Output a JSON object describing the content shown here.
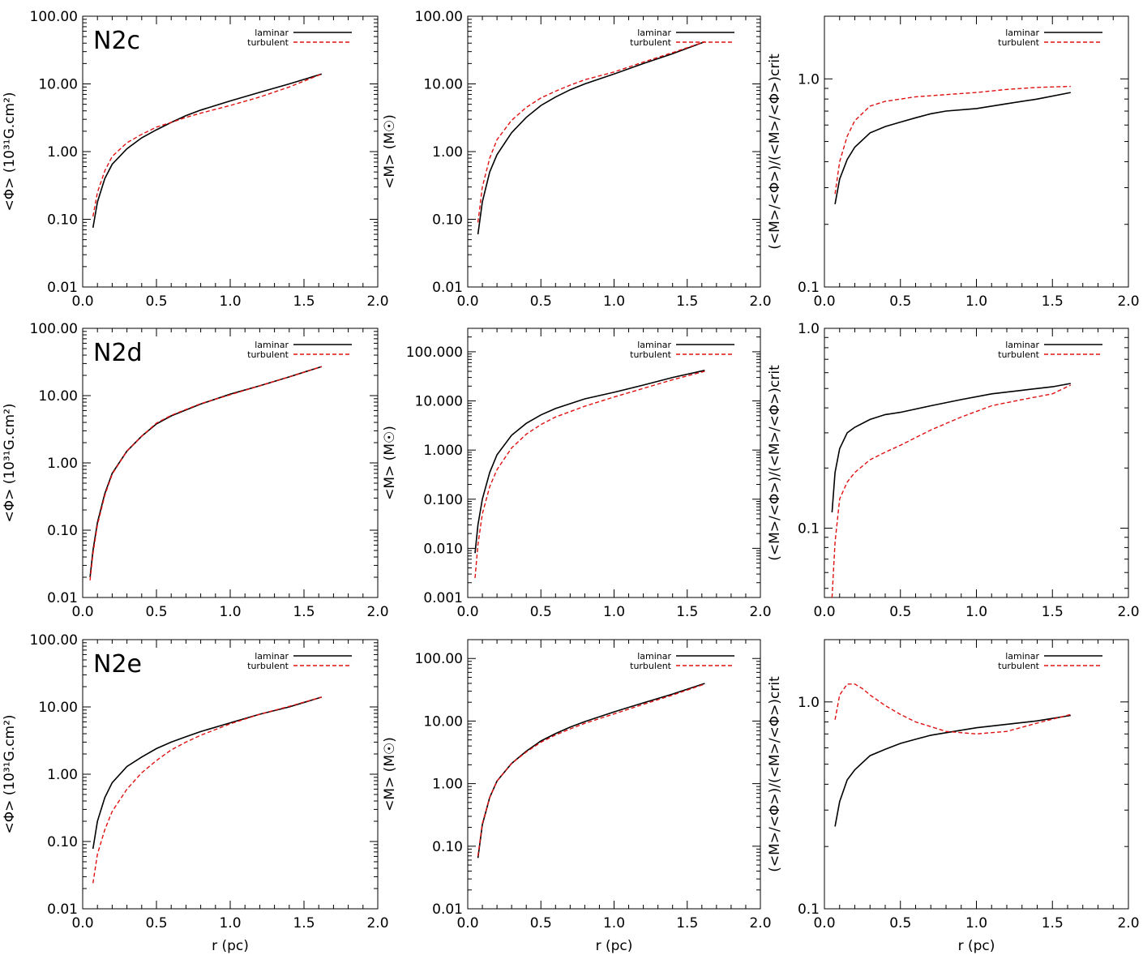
{
  "colors": {
    "laminar": "#000000",
    "turbulent": "#e01010",
    "axis": "#000000"
  },
  "legend": {
    "laminar_label": "laminar",
    "turbulent_label": "turbulent"
  },
  "chart_data": [
    {
      "id": "N2c-flux",
      "type": "line",
      "scale": "log",
      "title": "",
      "panel_label": "N2c",
      "xlabel": "",
      "ylabel": "<Φ> (10³¹G.cm²)",
      "xlim": [
        0,
        2
      ],
      "ylim": [
        0.01,
        100
      ],
      "yticks": [
        0.01,
        0.1,
        1,
        10,
        100
      ],
      "ytick_labels": [
        "0.01",
        "0.10",
        "1.00",
        "10.00",
        "100.00"
      ],
      "xtick_labels": [
        "0.0",
        "0.5",
        "1.0",
        "1.5",
        "2.0"
      ],
      "series": [
        {
          "name": "laminar",
          "x": [
            0.07,
            0.1,
            0.15,
            0.2,
            0.3,
            0.4,
            0.5,
            0.6,
            0.7,
            0.8,
            1.0,
            1.2,
            1.4,
            1.62
          ],
          "values": [
            0.075,
            0.18,
            0.4,
            0.65,
            1.1,
            1.6,
            2.1,
            2.7,
            3.4,
            4.1,
            5.6,
            7.5,
            10,
            14
          ]
        },
        {
          "name": "turbulent",
          "x": [
            0.07,
            0.1,
            0.15,
            0.2,
            0.3,
            0.4,
            0.5,
            0.6,
            0.7,
            0.8,
            1.0,
            1.2,
            1.4,
            1.62
          ],
          "values": [
            0.11,
            0.25,
            0.52,
            0.85,
            1.35,
            1.8,
            2.3,
            2.7,
            3.2,
            3.7,
            4.8,
            6.4,
            9.0,
            14
          ]
        }
      ]
    },
    {
      "id": "N2c-mass",
      "type": "line",
      "scale": "log",
      "title": "",
      "xlabel": "",
      "ylabel": "<M> (M☉)",
      "xlim": [
        0,
        2
      ],
      "ylim": [
        0.01,
        100
      ],
      "yticks": [
        0.01,
        0.1,
        1,
        10,
        100
      ],
      "ytick_labels": [
        "0.01",
        "0.10",
        "1.00",
        "10.00",
        "100.00"
      ],
      "xtick_labels": [
        "0.0",
        "0.5",
        "1.0",
        "1.5",
        "2.0"
      ],
      "series": [
        {
          "name": "laminar",
          "x": [
            0.07,
            0.1,
            0.15,
            0.2,
            0.3,
            0.4,
            0.5,
            0.6,
            0.7,
            0.8,
            1.0,
            1.2,
            1.4,
            1.62
          ],
          "values": [
            0.06,
            0.18,
            0.5,
            0.9,
            1.9,
            3.2,
            4.8,
            6.4,
            8.2,
            10,
            14,
            20,
            28,
            42
          ]
        },
        {
          "name": "turbulent",
          "x": [
            0.07,
            0.1,
            0.15,
            0.2,
            0.3,
            0.4,
            0.5,
            0.6,
            0.7,
            0.8,
            1.0,
            1.2,
            1.4,
            1.62
          ],
          "values": [
            0.09,
            0.3,
            0.8,
            1.5,
            2.9,
            4.5,
            6.2,
            7.8,
            9.6,
            11.5,
            15,
            21,
            29,
            42
          ]
        }
      ]
    },
    {
      "id": "N2c-ratio",
      "type": "line",
      "scale": "log",
      "title": "",
      "xlabel": "",
      "ylabel": "(<M>/<Φ>)/(<M>/<Φ>)crit",
      "xlim": [
        0,
        2
      ],
      "ylim": [
        0.1,
        2
      ],
      "yticks": [
        0.1,
        1.0
      ],
      "ytick_labels": [
        "0.1",
        "1.0"
      ],
      "xtick_labels": [
        "0.0",
        "0.5",
        "1.0",
        "1.5",
        "2.0"
      ],
      "series": [
        {
          "name": "laminar",
          "x": [
            0.07,
            0.1,
            0.15,
            0.2,
            0.3,
            0.4,
            0.5,
            0.6,
            0.7,
            0.8,
            1.0,
            1.2,
            1.4,
            1.62
          ],
          "values": [
            0.25,
            0.33,
            0.41,
            0.47,
            0.55,
            0.59,
            0.62,
            0.65,
            0.68,
            0.7,
            0.72,
            0.76,
            0.8,
            0.86
          ]
        },
        {
          "name": "turbulent",
          "x": [
            0.07,
            0.1,
            0.15,
            0.2,
            0.3,
            0.4,
            0.5,
            0.6,
            0.7,
            0.8,
            1.0,
            1.2,
            1.4,
            1.62
          ],
          "values": [
            0.28,
            0.4,
            0.53,
            0.63,
            0.74,
            0.78,
            0.8,
            0.82,
            0.83,
            0.84,
            0.86,
            0.89,
            0.91,
            0.92
          ]
        }
      ]
    },
    {
      "id": "N2d-flux",
      "type": "line",
      "scale": "log",
      "title": "",
      "panel_label": "N2d",
      "xlabel": "",
      "ylabel": "<Φ> (10³¹G.cm²)",
      "xlim": [
        0,
        2
      ],
      "ylim": [
        0.01,
        100
      ],
      "yticks": [
        0.01,
        0.1,
        1,
        10,
        100
      ],
      "ytick_labels": [
        "0.01",
        "0.10",
        "1.00",
        "10.00",
        "100.00"
      ],
      "xtick_labels": [
        "0.0",
        "0.5",
        "1.0",
        "1.5",
        "2.0"
      ],
      "series": [
        {
          "name": "laminar",
          "x": [
            0.05,
            0.07,
            0.1,
            0.15,
            0.2,
            0.3,
            0.4,
            0.5,
            0.6,
            0.8,
            1.0,
            1.2,
            1.4,
            1.62
          ],
          "values": [
            0.02,
            0.05,
            0.13,
            0.35,
            0.7,
            1.5,
            2.5,
            3.8,
            5.0,
            7.5,
            10.5,
            14,
            19,
            27
          ]
        },
        {
          "name": "turbulent",
          "x": [
            0.05,
            0.07,
            0.1,
            0.15,
            0.2,
            0.3,
            0.4,
            0.5,
            0.6,
            0.8,
            1.0,
            1.2,
            1.4,
            1.62
          ],
          "values": [
            0.018,
            0.045,
            0.12,
            0.33,
            0.68,
            1.5,
            2.5,
            3.9,
            5.1,
            7.6,
            10.3,
            14,
            19,
            27
          ]
        }
      ]
    },
    {
      "id": "N2d-mass",
      "type": "line",
      "scale": "log",
      "title": "",
      "xlabel": "",
      "ylabel": "<M> (M☉)",
      "xlim": [
        0,
        2
      ],
      "ylim": [
        0.001,
        300
      ],
      "yticks": [
        0.001,
        0.01,
        0.1,
        1,
        10,
        100
      ],
      "ytick_labels": [
        "0.001",
        "0.010",
        "0.100",
        "1.000",
        "10.000",
        "100.000"
      ],
      "xtick_labels": [
        "0.0",
        "0.5",
        "1.0",
        "1.5",
        "2.0"
      ],
      "series": [
        {
          "name": "laminar",
          "x": [
            0.05,
            0.07,
            0.1,
            0.15,
            0.2,
            0.3,
            0.4,
            0.5,
            0.6,
            0.8,
            1.0,
            1.2,
            1.4,
            1.62
          ],
          "values": [
            0.008,
            0.03,
            0.1,
            0.35,
            0.8,
            2.0,
            3.5,
            5.2,
            7.0,
            11,
            15,
            21,
            30,
            42
          ]
        },
        {
          "name": "turbulent",
          "x": [
            0.05,
            0.07,
            0.1,
            0.15,
            0.2,
            0.3,
            0.4,
            0.5,
            0.6,
            0.8,
            1.0,
            1.2,
            1.4,
            1.62
          ],
          "values": [
            0.0025,
            0.012,
            0.05,
            0.18,
            0.4,
            1.1,
            2.1,
            3.3,
            4.7,
            7.8,
            12,
            18,
            27,
            40
          ]
        }
      ]
    },
    {
      "id": "N2d-ratio",
      "type": "line",
      "scale": "log",
      "title": "",
      "xlabel": "",
      "ylabel": "(<M>/<Φ>)/(<M>/<Φ>)crit",
      "xlim": [
        0,
        2
      ],
      "ylim": [
        0.045,
        1.0
      ],
      "yticks": [
        0.1,
        1.0
      ],
      "ytick_labels": [
        "0.1",
        "1.0"
      ],
      "xtick_labels": [
        "0.0",
        "0.5",
        "1.0",
        "1.5",
        "2.0"
      ],
      "series": [
        {
          "name": "laminar",
          "x": [
            0.05,
            0.07,
            0.1,
            0.15,
            0.2,
            0.3,
            0.4,
            0.5,
            0.7,
            0.9,
            1.1,
            1.3,
            1.5,
            1.62
          ],
          "values": [
            0.12,
            0.19,
            0.25,
            0.3,
            0.32,
            0.35,
            0.37,
            0.38,
            0.41,
            0.44,
            0.47,
            0.49,
            0.51,
            0.53
          ]
        },
        {
          "name": "turbulent",
          "x": [
            0.05,
            0.07,
            0.1,
            0.15,
            0.2,
            0.3,
            0.4,
            0.5,
            0.7,
            0.9,
            1.1,
            1.3,
            1.5,
            1.62
          ],
          "values": [
            0.045,
            0.085,
            0.14,
            0.17,
            0.19,
            0.22,
            0.24,
            0.26,
            0.31,
            0.36,
            0.41,
            0.44,
            0.47,
            0.52
          ]
        }
      ]
    },
    {
      "id": "N2e-flux",
      "type": "line",
      "scale": "log",
      "title": "",
      "panel_label": "N2e",
      "xlabel": "r (pc)",
      "ylabel": "<Φ> (10³¹G.cm²)",
      "xlim": [
        0,
        2
      ],
      "ylim": [
        0.01,
        100
      ],
      "yticks": [
        0.01,
        0.1,
        1,
        10,
        100
      ],
      "ytick_labels": [
        "0.01",
        "0.10",
        "1.00",
        "10.00",
        "100.00"
      ],
      "xtick_labels": [
        "0.0",
        "0.5",
        "1.0",
        "1.5",
        "2.0"
      ],
      "series": [
        {
          "name": "laminar",
          "x": [
            0.07,
            0.1,
            0.15,
            0.2,
            0.3,
            0.4,
            0.5,
            0.6,
            0.7,
            0.8,
            1.0,
            1.2,
            1.4,
            1.62
          ],
          "values": [
            0.078,
            0.2,
            0.45,
            0.75,
            1.3,
            1.8,
            2.4,
            3.0,
            3.6,
            4.3,
            5.8,
            7.8,
            10,
            14
          ]
        },
        {
          "name": "turbulent",
          "x": [
            0.07,
            0.1,
            0.15,
            0.2,
            0.3,
            0.4,
            0.5,
            0.6,
            0.7,
            0.8,
            1.0,
            1.2,
            1.4,
            1.62
          ],
          "values": [
            0.024,
            0.065,
            0.15,
            0.28,
            0.6,
            1.05,
            1.6,
            2.3,
            3.0,
            3.8,
            5.6,
            7.8,
            10.2,
            14
          ]
        }
      ]
    },
    {
      "id": "N2e-mass",
      "type": "line",
      "scale": "log",
      "title": "",
      "xlabel": "r (pc)",
      "ylabel": "<M> (M☉)",
      "xlim": [
        0,
        2
      ],
      "ylim": [
        0.01,
        200
      ],
      "yticks": [
        0.01,
        0.1,
        1,
        10,
        100
      ],
      "ytick_labels": [
        "0.01",
        "0.10",
        "1.00",
        "10.00",
        "100.00"
      ],
      "xtick_labels": [
        "0.0",
        "0.5",
        "1.0",
        "1.5",
        "2.0"
      ],
      "series": [
        {
          "name": "laminar",
          "x": [
            0.07,
            0.1,
            0.15,
            0.2,
            0.3,
            0.4,
            0.5,
            0.6,
            0.7,
            0.8,
            1.0,
            1.2,
            1.4,
            1.62
          ],
          "values": [
            0.065,
            0.22,
            0.6,
            1.1,
            2.1,
            3.3,
            4.8,
            6.3,
            8.0,
            9.8,
            14,
            19.5,
            27,
            40
          ]
        },
        {
          "name": "turbulent",
          "x": [
            0.07,
            0.1,
            0.15,
            0.2,
            0.3,
            0.4,
            0.5,
            0.6,
            0.7,
            0.8,
            1.0,
            1.2,
            1.4,
            1.62
          ],
          "values": [
            0.07,
            0.23,
            0.6,
            1.1,
            2.1,
            3.2,
            4.6,
            6.0,
            7.5,
            9.2,
            13,
            18.5,
            26,
            39
          ]
        }
      ]
    },
    {
      "id": "N2e-ratio",
      "type": "line",
      "scale": "log",
      "title": "",
      "xlabel": "r (pc)",
      "ylabel": "(<M>/<Φ>)/(<M>/<Φ>)crit",
      "xlim": [
        0,
        2
      ],
      "ylim": [
        0.1,
        2
      ],
      "yticks": [
        0.1,
        1.0
      ],
      "ytick_labels": [
        "0.1",
        "1.0"
      ],
      "xtick_labels": [
        "0.0",
        "0.5",
        "1.0",
        "1.5",
        "2.0"
      ],
      "series": [
        {
          "name": "laminar",
          "x": [
            0.07,
            0.1,
            0.15,
            0.2,
            0.3,
            0.4,
            0.5,
            0.6,
            0.7,
            0.8,
            1.0,
            1.2,
            1.4,
            1.62
          ],
          "values": [
            0.25,
            0.33,
            0.42,
            0.47,
            0.55,
            0.59,
            0.63,
            0.66,
            0.69,
            0.71,
            0.75,
            0.78,
            0.81,
            0.86
          ]
        },
        {
          "name": "turbulent",
          "x": [
            0.07,
            0.1,
            0.15,
            0.2,
            0.25,
            0.3,
            0.4,
            0.5,
            0.6,
            0.8,
            1.0,
            1.2,
            1.4,
            1.62
          ],
          "values": [
            0.82,
            1.08,
            1.22,
            1.22,
            1.16,
            1.08,
            0.96,
            0.87,
            0.8,
            0.72,
            0.7,
            0.72,
            0.79,
            0.87
          ]
        }
      ]
    }
  ]
}
